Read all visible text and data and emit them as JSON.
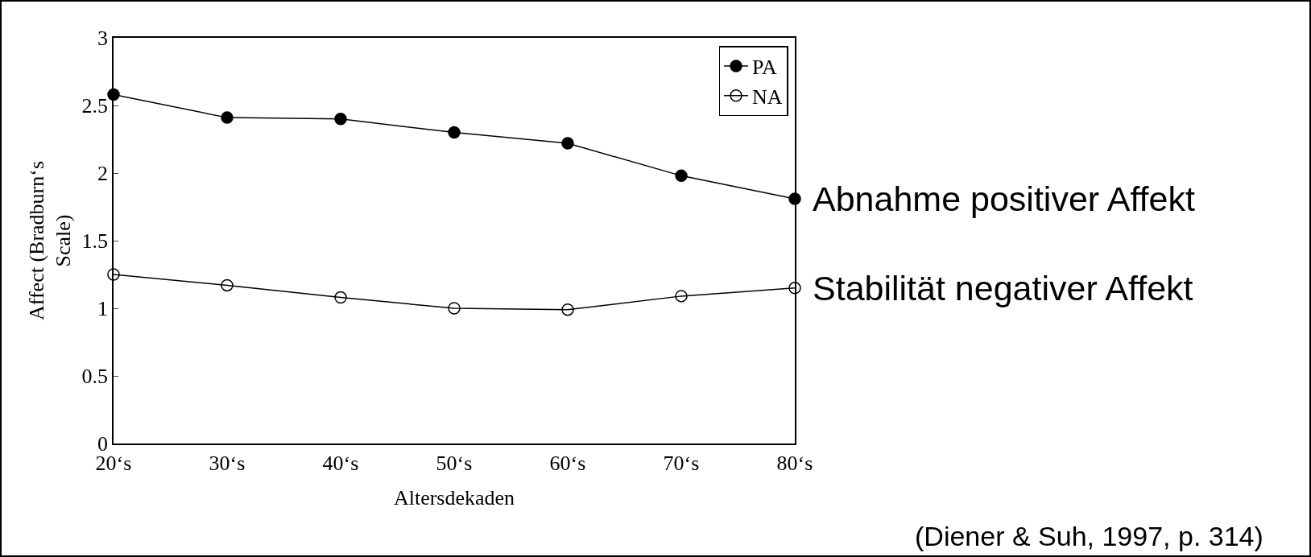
{
  "chart_data": {
    "type": "line",
    "xlabel": "Altersdekaden",
    "ylabel": "Affect (Bradburn‘s Scale)",
    "categories": [
      "20‘s",
      "30‘s",
      "40‘s",
      "50‘s",
      "60‘s",
      "70‘s",
      "80‘s"
    ],
    "series": [
      {
        "name": "PA",
        "color": "#000000",
        "values": [
          2.58,
          2.41,
          2.4,
          2.3,
          2.22,
          1.98,
          1.81
        ]
      },
      {
        "name": "NA",
        "color": "#000000",
        "marker": "circle-open",
        "values": [
          1.25,
          1.17,
          1.08,
          1.0,
          0.99,
          1.09,
          1.15
        ]
      }
    ],
    "ylim": [
      0,
      3
    ],
    "yticks": [
      0,
      0.5,
      1,
      1.5,
      2,
      2.5,
      3
    ],
    "grid": false,
    "legend": "top right",
    "marker": "circle",
    "line_style": "solid",
    "annotations": [
      {
        "text": "Abnahme positiver Affekt",
        "x": "80‘s",
        "y": 1.81
      },
      {
        "text": "Stabilität negativer Affekt",
        "x": "80‘s",
        "y": 1.15
      },
      "(Diener & Suh, 1997, p. 314)"
    ]
  }
}
